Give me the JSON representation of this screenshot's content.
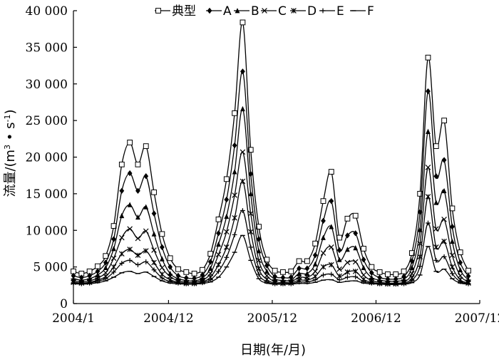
{
  "chart_data": {
    "type": "line",
    "title": "",
    "xlabel": "日期(年/月)",
    "ylabel": "流量/(m³ • s⁻¹)",
    "ylabel_main": "流量/(m",
    "ylabel_sup1": "3",
    "ylabel_mid": " • s",
    "ylabel_sup2": "-1",
    "ylabel_end": ")",
    "ylim": [
      0,
      40000
    ],
    "y_ticks": [
      0,
      5000,
      10000,
      15000,
      20000,
      25000,
      30000,
      35000,
      40000
    ],
    "y_tick_labels": [
      "0",
      "5 000",
      "10 000",
      "15 000",
      "20 000",
      "25 000",
      "30 000",
      "35 000",
      "40 000"
    ],
    "x_range": [
      "2004-01",
      "2007-12"
    ],
    "x_ticks": [
      "2004-01",
      "2004-12",
      "2005-12",
      "2006-12",
      "2007-12"
    ],
    "x_tick_labels": [
      "2004/1",
      "2004/12",
      "2005/12",
      "2006/12",
      "2007/12"
    ],
    "legend_position": "top",
    "grid": false,
    "series": [
      {
        "name": "典型",
        "marker": "square-open",
        "values": [
          4400,
          4100,
          4400,
          5100,
          6500,
          10600,
          19000,
          22000,
          19000,
          21500,
          15200,
          9500,
          6200,
          4700,
          4300,
          4100,
          4600,
          6800,
          11500,
          17000,
          26000,
          38400,
          21000,
          10500,
          6000,
          4500,
          4300,
          4400,
          5800,
          5800,
          8200,
          14000,
          18000,
          9000,
          11600,
          12000,
          7500,
          5000,
          4300,
          4000,
          4000,
          4400,
          6900,
          15000,
          33600,
          21500,
          25000,
          13000,
          7000,
          4500
        ]
      },
      {
        "name": "A",
        "marker": "diamond-filled",
        "values": [
          3800,
          3550,
          3800,
          4400,
          5600,
          8800,
          15400,
          17800,
          15400,
          17400,
          12300,
          7700,
          5000,
          3800,
          3500,
          3450,
          3900,
          5700,
          9600,
          14200,
          21600,
          31700,
          17700,
          8800,
          5200,
          3700,
          3550,
          3600,
          4800,
          4800,
          6600,
          11300,
          14000,
          7300,
          9300,
          9600,
          6000,
          4200,
          3550,
          3350,
          3350,
          3700,
          5800,
          12500,
          29000,
          17400,
          19600,
          10500,
          5600,
          3750
        ]
      },
      {
        "name": "B",
        "marker": "triangle-filled",
        "values": [
          3400,
          3200,
          3400,
          3900,
          4900,
          7500,
          12000,
          13500,
          11800,
          13200,
          9500,
          6100,
          4100,
          3400,
          3150,
          3100,
          3500,
          4800,
          8100,
          11900,
          18000,
          26600,
          15000,
          7200,
          4400,
          3350,
          3150,
          3200,
          4100,
          4100,
          5400,
          9000,
          10500,
          6000,
          7400,
          7600,
          4900,
          3550,
          3200,
          3050,
          3050,
          3300,
          4900,
          10100,
          23500,
          13800,
          15400,
          8500,
          4600,
          3250
        ]
      },
      {
        "name": "C",
        "marker": "x",
        "values": [
          3100,
          2950,
          3100,
          3500,
          4200,
          6200,
          9000,
          10200,
          8900,
          9900,
          7300,
          4900,
          3700,
          3100,
          2900,
          2900,
          3200,
          4100,
          6700,
          9800,
          14800,
          20700,
          12300,
          5900,
          3800,
          3000,
          2900,
          2950,
          3600,
          3600,
          4400,
          6900,
          7700,
          4700,
          5600,
          5700,
          3900,
          3150,
          2900,
          2800,
          2800,
          2950,
          4100,
          8200,
          18600,
          10200,
          11500,
          6600,
          3800,
          2950
        ]
      },
      {
        "name": "D",
        "marker": "asterisk",
        "values": [
          2900,
          2800,
          2900,
          3200,
          3700,
          5000,
          6800,
          7400,
          6600,
          7200,
          5600,
          4000,
          3250,
          2900,
          2750,
          2750,
          2950,
          3600,
          5300,
          7700,
          11700,
          16700,
          9800,
          4800,
          3300,
          2800,
          2750,
          2800,
          3200,
          3200,
          3700,
          5000,
          5300,
          3750,
          4300,
          4400,
          3300,
          2900,
          2750,
          2700,
          2700,
          2800,
          3500,
          6400,
          14600,
          7700,
          8500,
          5000,
          3250,
          2800
        ]
      },
      {
        "name": "E",
        "marker": "plus",
        "values": [
          2800,
          2700,
          2800,
          3050,
          3400,
          4300,
          5500,
          5900,
          5300,
          5700,
          4600,
          3500,
          3000,
          2800,
          2700,
          2700,
          2850,
          3250,
          4400,
          6300,
          9400,
          12700,
          7700,
          4000,
          3000,
          2700,
          2700,
          2700,
          2950,
          2950,
          3250,
          3900,
          4000,
          3250,
          3600,
          3650,
          3000,
          2800,
          2700,
          2650,
          2650,
          2700,
          3150,
          5100,
          11000,
          5900,
          6400,
          4100,
          3000,
          2700
        ]
      },
      {
        "name": "F",
        "marker": "dash",
        "values": [
          2700,
          2650,
          2700,
          2850,
          3100,
          3600,
          4200,
          4400,
          4100,
          4300,
          3700,
          3100,
          2800,
          2700,
          2650,
          2650,
          2750,
          2950,
          3600,
          5000,
          7000,
          9300,
          5900,
          3400,
          2800,
          2650,
          2650,
          2650,
          2750,
          2750,
          2900,
          3200,
          3250,
          2900,
          3050,
          3100,
          2800,
          2700,
          2650,
          2600,
          2600,
          2650,
          2850,
          3900,
          7800,
          4400,
          4700,
          3400,
          2800,
          2650
        ]
      }
    ]
  }
}
